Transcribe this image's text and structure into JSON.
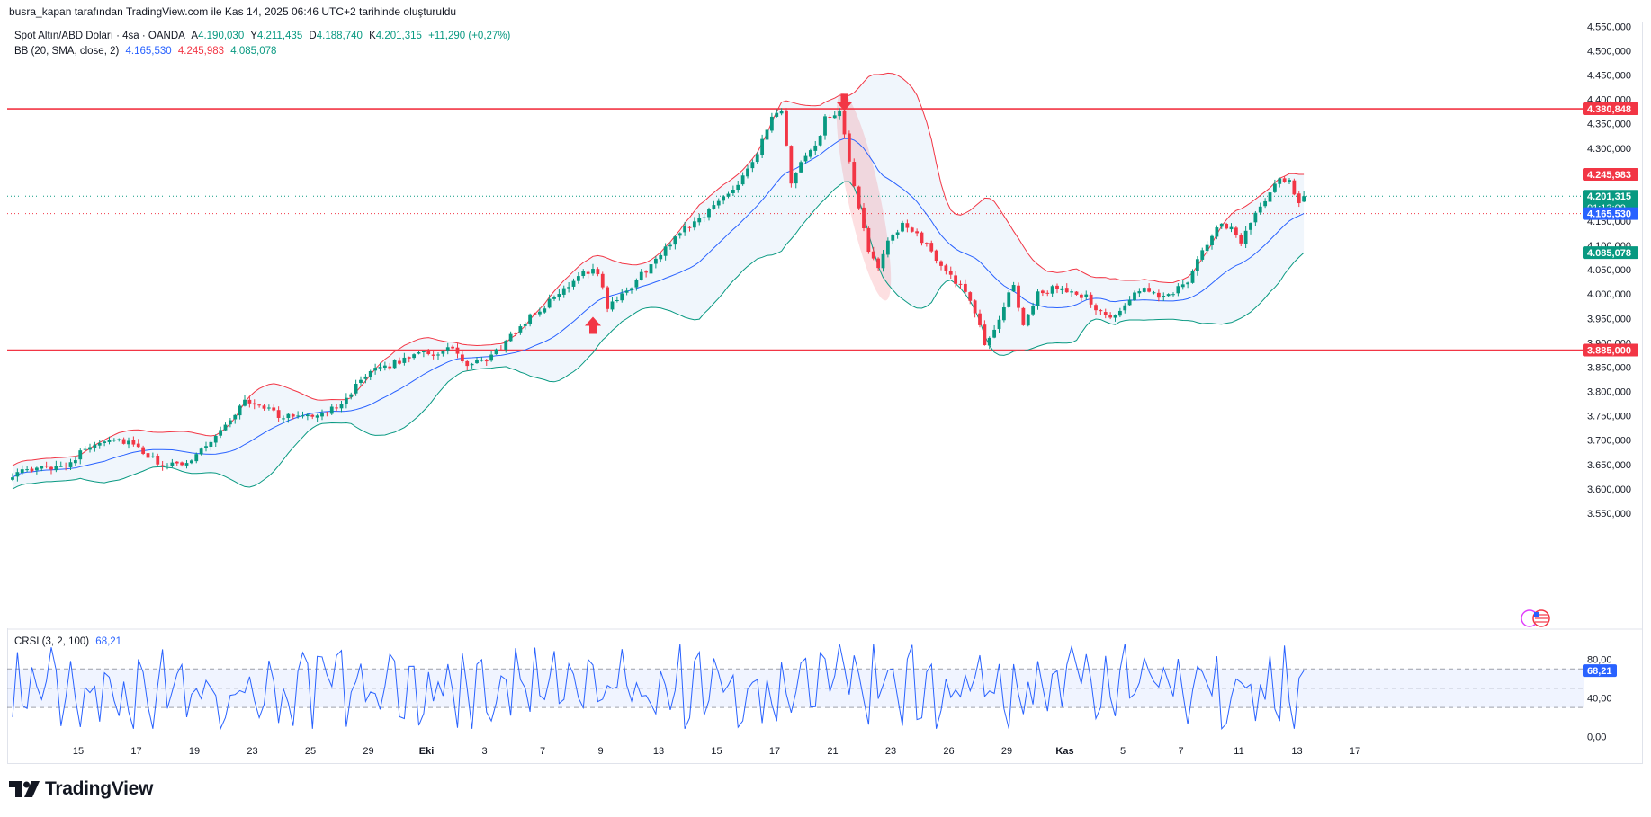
{
  "header": {
    "attribution": "busra_kapan tarafından TradingView.com ile Kas 14, 2025 06:46 UTC+2 tarihinde oluşturuldu"
  },
  "legend": {
    "symbol": "Spot Altın/ABD Doları · 4sa · OANDA",
    "open_label": "A",
    "open": "4.190,030",
    "high_label": "Y",
    "high": "4.211,435",
    "low_label": "D",
    "low": "4.188,740",
    "close_label": "K",
    "close": "4.201,315",
    "change": "+11,290 (+0,27%)",
    "bb_label": "BB (20, SMA, close, 2)",
    "bb_basis": "4.165,530",
    "bb_upper": "4.245,983",
    "bb_lower": "4.085,078",
    "crsi_label": "CRSI (3, 2, 100)",
    "crsi_value": "68,21"
  },
  "price_tags": {
    "resistance": "4.380,848",
    "bb_upper": "4.245,983",
    "last_price": "4.201,315",
    "countdown": "01:13:09",
    "bb_basis": "4.165,530",
    "bb_lower": "4.085,078",
    "support": "3.885,000",
    "crsi": "68,21"
  },
  "brand": {
    "name": "TradingView"
  },
  "colors": {
    "up": "#089981",
    "down": "#f23645",
    "basis": "#2962ff",
    "upper": "#f23645",
    "lower": "#089981",
    "band_fill": "#f0f6fc",
    "level": "#f23645",
    "crsi": "#2962ff"
  },
  "chart_data": [
    {
      "type": "candlestick",
      "title": "Spot Altın/ABD Doları · 4sa · OANDA",
      "ylim": [
        3500,
        4560
      ],
      "y_ticks": [
        "3.550,000",
        "3.600,000",
        "3.650,000",
        "3.700,000",
        "3.750,000",
        "3.800,000",
        "3.850,000",
        "3.900,000",
        "3.950,000",
        "4.000,000",
        "4.050,000",
        "4.100,000",
        "4.150,000",
        "4.200,000",
        "4.250,000",
        "4.300,000",
        "4.350,000",
        "4.400,000",
        "4.450,000",
        "4.500,000",
        "4.550,000"
      ],
      "y_tick_values": [
        3550,
        3600,
        3650,
        3700,
        3750,
        3800,
        3850,
        3900,
        3950,
        4000,
        4050,
        4100,
        4150,
        4200,
        4250,
        4300,
        4350,
        4400,
        4450,
        4500,
        4550
      ],
      "x_ticks": [
        "15",
        "17",
        "19",
        "23",
        "25",
        "29",
        "Eki",
        "3",
        "7",
        "9",
        "13",
        "15",
        "17",
        "21",
        "23",
        "26",
        "29",
        "Kas",
        "5",
        "7",
        "11",
        "13",
        "17"
      ],
      "x_tick_index": [
        8,
        20,
        32,
        44,
        56,
        68,
        80,
        92,
        104,
        116,
        128,
        140,
        152,
        164,
        176,
        188,
        200,
        212,
        224,
        236,
        248,
        260,
        272
      ],
      "bar_count": 268,
      "close_anchors": [
        [
          0,
          3630
        ],
        [
          8,
          3645
        ],
        [
          12,
          3655
        ],
        [
          16,
          3690
        ],
        [
          20,
          3705
        ],
        [
          24,
          3695
        ],
        [
          28,
          3665
        ],
        [
          32,
          3645
        ],
        [
          36,
          3655
        ],
        [
          40,
          3690
        ],
        [
          44,
          3730
        ],
        [
          48,
          3780
        ],
        [
          52,
          3770
        ],
        [
          56,
          3745
        ],
        [
          60,
          3755
        ],
        [
          64,
          3750
        ],
        [
          68,
          3780
        ],
        [
          72,
          3820
        ],
        [
          76,
          3850
        ],
        [
          80,
          3860
        ],
        [
          84,
          3885
        ],
        [
          88,
          3875
        ],
        [
          91,
          3890
        ],
        [
          94,
          3850
        ],
        [
          98,
          3865
        ],
        [
          102,
          3900
        ],
        [
          106,
          3945
        ],
        [
          110,
          3975
        ],
        [
          114,
          4010
        ],
        [
          118,
          4050
        ],
        [
          121,
          4045
        ],
        [
          123,
          3975
        ],
        [
          126,
          3995
        ],
        [
          130,
          4040
        ],
        [
          134,
          4080
        ],
        [
          138,
          4130
        ],
        [
          142,
          4155
        ],
        [
          146,
          4190
        ],
        [
          150,
          4230
        ],
        [
          154,
          4290
        ],
        [
          157,
          4360
        ],
        [
          159,
          4375
        ],
        [
          161,
          4230
        ],
        [
          163,
          4270
        ],
        [
          166,
          4300
        ],
        [
          168,
          4360
        ],
        [
          171,
          4370
        ],
        [
          173,
          4275
        ],
        [
          175,
          4170
        ],
        [
          177,
          4090
        ],
        [
          179,
          4060
        ],
        [
          181,
          4105
        ],
        [
          184,
          4140
        ],
        [
          187,
          4125
        ],
        [
          190,
          4085
        ],
        [
          193,
          4050
        ],
        [
          196,
          4015
        ],
        [
          199,
          3965
        ],
        [
          201,
          3895
        ],
        [
          204,
          3950
        ],
        [
          207,
          4020
        ],
        [
          209,
          3935
        ],
        [
          212,
          4000
        ],
        [
          216,
          4015
        ],
        [
          219,
          4000
        ],
        [
          222,
          3995
        ],
        [
          225,
          3960
        ],
        [
          228,
          3950
        ],
        [
          231,
          3990
        ],
        [
          234,
          4010
        ],
        [
          237,
          3995
        ],
        [
          240,
          4005
        ],
        [
          243,
          4030
        ],
        [
          246,
          4085
        ],
        [
          249,
          4140
        ],
        [
          252,
          4140
        ],
        [
          254,
          4110
        ],
        [
          257,
          4170
        ],
        [
          259,
          4195
        ],
        [
          261,
          4230
        ],
        [
          264,
          4235
        ],
        [
          265,
          4200
        ],
        [
          266,
          4180
        ],
        [
          267,
          4201
        ]
      ],
      "bollinger": {
        "period": 20,
        "basis": "SMA",
        "mult": 2,
        "basis_last": 4165.53,
        "upper_last": 4245.983,
        "lower_last": 4085.078
      },
      "levels": [
        {
          "name": "resistance",
          "value": 4380.848
        },
        {
          "name": "support",
          "value": 3885.0
        }
      ],
      "markers": [
        {
          "type": "arrow-up",
          "bar": 120,
          "value": 3935
        },
        {
          "type": "arrow-down",
          "bar": 172,
          "value": 4395
        }
      ],
      "last_price": 4201.315,
      "dotted_level": 4165.53
    },
    {
      "type": "line",
      "title": "CRSI (3, 2, 100)",
      "ylim": [
        -8,
        100
      ],
      "y_ticks": [
        "0,00",
        "40,00",
        "80,00"
      ],
      "y_tick_values": [
        0,
        40,
        80
      ],
      "band": [
        30,
        70
      ],
      "mid": 50,
      "last_value": 68.21,
      "oscillation": "bounded 10-95, high-frequency"
    }
  ]
}
